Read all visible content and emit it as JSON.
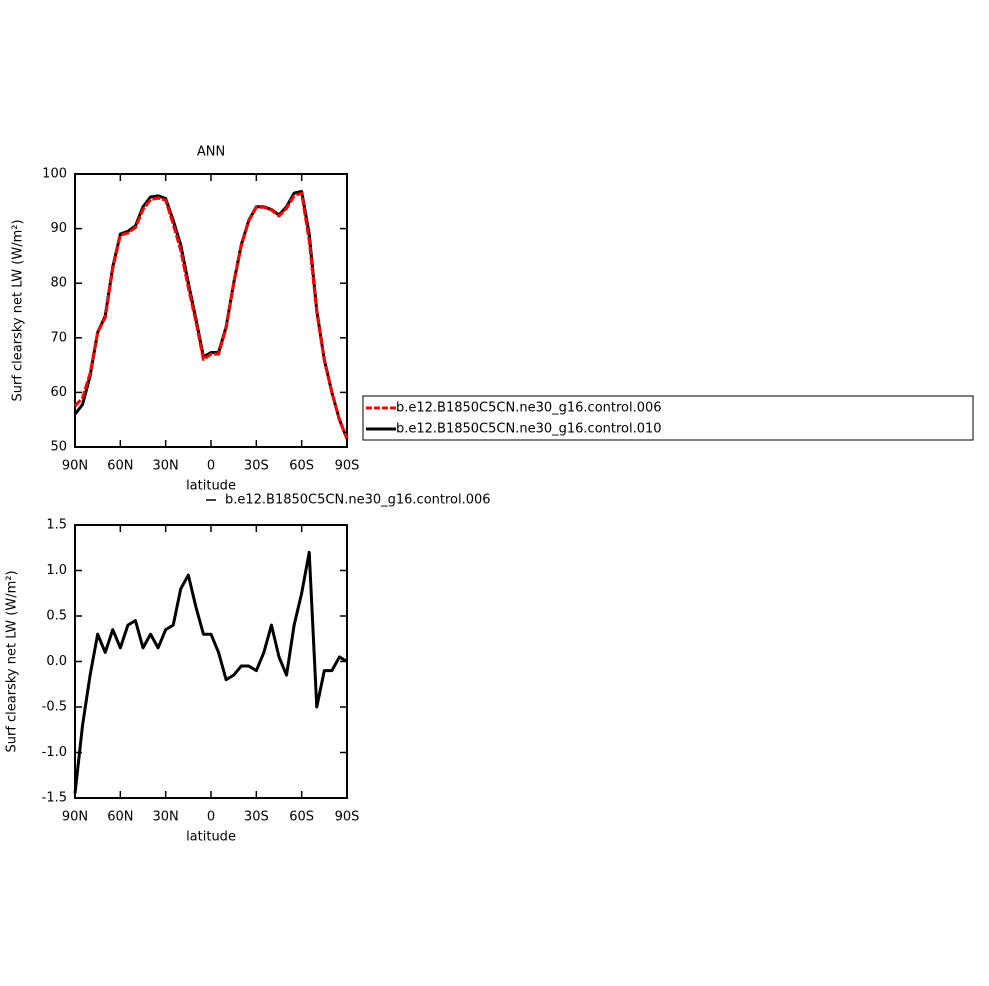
{
  "chart_data": [
    {
      "type": "line",
      "title": "ANN",
      "x_label": "latitude",
      "y_label": "Surf clearsky net LW (W/m²)",
      "x": [
        90,
        85,
        80,
        75,
        70,
        65,
        60,
        55,
        50,
        45,
        40,
        35,
        30,
        25,
        20,
        15,
        10,
        5,
        0,
        -5,
        -10,
        -15,
        -20,
        -25,
        -30,
        -35,
        -40,
        -45,
        -50,
        -55,
        -60,
        -65,
        -70,
        -75,
        -80,
        -85,
        -90
      ],
      "series": [
        {
          "name": "b.e12.B1850C5CN.ne30_g16.control.006",
          "color": "#ff0000",
          "dashed": true,
          "values": [
            57.5,
            59,
            63.5,
            71,
            73.7,
            82.7,
            88.8,
            89.2,
            90.2,
            93.5,
            95.3,
            95.6,
            95.2,
            90.8,
            86,
            79.2,
            73,
            66,
            67,
            67,
            71.8,
            79.9,
            86.8,
            91.4,
            93.9,
            93.9,
            93.4,
            92.3,
            93.7,
            96,
            96.5,
            87.8,
            74.7,
            65.8,
            60,
            55,
            51.5
          ]
        },
        {
          "name": "b.e12.B1850C5CN.ne30_g16.control.010",
          "color": "#000000",
          "dashed": false,
          "values": [
            56,
            57.8,
            63,
            71,
            74,
            83,
            89,
            89.5,
            90.5,
            94,
            95.8,
            96,
            95.5,
            91.5,
            87,
            80,
            73.5,
            66.5,
            67.3,
            67.3,
            72,
            80,
            87,
            91.5,
            94,
            94,
            93.5,
            92.5,
            94,
            96.5,
            96.8,
            89,
            75,
            66,
            60,
            55,
            51.5
          ]
        }
      ],
      "xlim": [
        90,
        -90
      ],
      "xticks": [
        {
          "value": 90,
          "label": "90N"
        },
        {
          "value": 60,
          "label": "60N"
        },
        {
          "value": 30,
          "label": "30N"
        },
        0,
        {
          "value": -30,
          "label": "30S"
        },
        {
          "value": -60,
          "label": "60S"
        },
        {
          "value": -90,
          "label": "90S"
        }
      ],
      "ylim": [
        50,
        100
      ],
      "yticks": [
        50,
        60,
        70,
        80,
        90,
        100
      ],
      "legend": "right"
    },
    {
      "type": "line",
      "x_label": "latitude",
      "y_label": "Surf clearsky net LW (W/m²)",
      "x": [
        90,
        85,
        80,
        75,
        70,
        65,
        60,
        55,
        50,
        45,
        40,
        35,
        30,
        25,
        20,
        15,
        10,
        5,
        0,
        -5,
        -10,
        -15,
        -20,
        -25,
        -30,
        -35,
        -40,
        -45,
        -50,
        -55,
        -60,
        -65,
        -70,
        -75,
        -80,
        -85,
        -90
      ],
      "series": [
        {
          "name": "b.e12.B1850C5CN.ne30_g16.control.006",
          "color": "#000000",
          "dashed": false,
          "values": [
            -1.45,
            -0.7,
            -0.15,
            0.3,
            0.1,
            0.35,
            0.15,
            0.4,
            0.45,
            0.15,
            0.3,
            0.15,
            0.35,
            0.4,
            0.8,
            0.95,
            0.6,
            0.3,
            0.3,
            0.1,
            -0.2,
            -0.15,
            -0.05,
            -0.05,
            -0.1,
            0.1,
            0.4,
            0.05,
            -0.15,
            0.4,
            0.75,
            1.2,
            -0.5,
            -0.1,
            -0.1,
            0.05,
            0
          ]
        }
      ],
      "xlim": [
        90,
        -90
      ],
      "xticks": [
        {
          "value": 90,
          "label": "90N"
        },
        {
          "value": 60,
          "label": "60N"
        },
        {
          "value": 30,
          "label": "30N"
        },
        0,
        {
          "value": -30,
          "label": "30S"
        },
        {
          "value": -60,
          "label": "60S"
        },
        {
          "value": -90,
          "label": "90S"
        }
      ],
      "ylim": [
        -1.5,
        1.5
      ],
      "yticks": [
        -1.5,
        {
          "value": -1,
          "label": "-1.0"
        },
        -0.5,
        {
          "value": 0,
          "label": "0.0"
        },
        0.5,
        {
          "value": 1,
          "label": "1.0"
        },
        1.5
      ],
      "legend": "top"
    }
  ]
}
